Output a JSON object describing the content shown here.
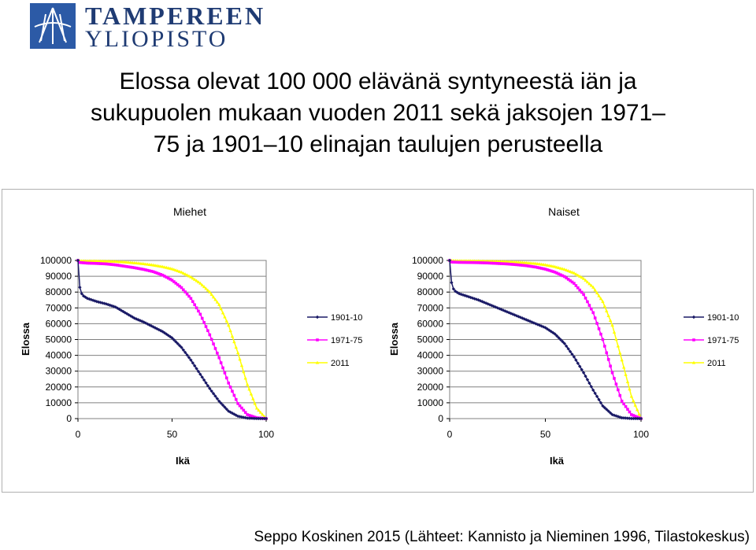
{
  "logo": {
    "line1": "TAMPEREEN",
    "line2": "YLIOPISTO"
  },
  "title_lines": [
    "Elossa olevat 100 000 elävänä syntyneestä iän ja",
    "sukupuolen mukaan vuoden 2011 sekä jaksojen 1971–",
    "75 ja 1901–10 elinajan taulujen perusteella"
  ],
  "credit": "Seppo Koskinen 2015 (Lähteet: Kannisto ja Nieminen 1996, Tilastokeskus)",
  "colors": {
    "1901-10": "#1a1a66",
    "1971-75": "#ff00ff",
    "2011": "#ffff00"
  },
  "chart_data": [
    {
      "type": "line",
      "title": "Miehet",
      "xlabel": "Ikä",
      "ylabel": "Elossa",
      "xlim": [
        0,
        100
      ],
      "ylim": [
        0,
        100000
      ],
      "xticks": [
        "0",
        "50",
        "100"
      ],
      "yticks": [
        "0",
        "10000",
        "20000",
        "30000",
        "40000",
        "50000",
        "60000",
        "70000",
        "80000",
        "90000",
        "100000"
      ],
      "grid": true,
      "legend": "right",
      "series": [
        {
          "name": "1901-10",
          "x": [
            0,
            1,
            2,
            3,
            5,
            10,
            15,
            20,
            25,
            30,
            35,
            40,
            45,
            50,
            55,
            60,
            65,
            70,
            75,
            80,
            85,
            90,
            95,
            100
          ],
          "values": [
            100000,
            83000,
            79000,
            77500,
            76000,
            74000,
            72500,
            70500,
            67000,
            63500,
            61000,
            58000,
            55000,
            51000,
            45000,
            37000,
            28000,
            19000,
            11000,
            4700,
            1500,
            300,
            40,
            0
          ]
        },
        {
          "name": "1971-75",
          "x": [
            0,
            1,
            5,
            10,
            15,
            20,
            25,
            30,
            35,
            40,
            45,
            50,
            55,
            60,
            65,
            70,
            75,
            80,
            85,
            90,
            95,
            100
          ],
          "values": [
            100000,
            98700,
            98300,
            98100,
            97800,
            97200,
            96300,
            95400,
            94300,
            92900,
            90700,
            87500,
            82800,
            76000,
            66000,
            53000,
            38500,
            22500,
            9500,
            2500,
            500,
            0
          ]
        },
        {
          "name": "2011",
          "x": [
            0,
            1,
            5,
            10,
            15,
            20,
            25,
            30,
            35,
            40,
            45,
            50,
            55,
            60,
            65,
            70,
            75,
            80,
            85,
            90,
            95,
            100
          ],
          "values": [
            100000,
            99700,
            99600,
            99600,
            99500,
            99300,
            98900,
            98400,
            97800,
            97000,
            96000,
            94600,
            92500,
            89500,
            85500,
            80000,
            72000,
            59000,
            41500,
            21500,
            6500,
            0
          ]
        }
      ]
    },
    {
      "type": "line",
      "title": "Naiset",
      "xlabel": "Ikä",
      "ylabel": "Elossa",
      "xlim": [
        0,
        100
      ],
      "ylim": [
        0,
        100000
      ],
      "xticks": [
        "0",
        "50",
        "100"
      ],
      "yticks": [
        "0",
        "10000",
        "20000",
        "30000",
        "40000",
        "50000",
        "60000",
        "70000",
        "80000",
        "90000",
        "100000"
      ],
      "grid": true,
      "legend": "right",
      "series": [
        {
          "name": "1901-10",
          "x": [
            0,
            1,
            2,
            3,
            5,
            10,
            15,
            20,
            25,
            30,
            35,
            40,
            45,
            50,
            55,
            60,
            65,
            70,
            75,
            80,
            85,
            90,
            95,
            100
          ],
          "values": [
            100000,
            86000,
            82000,
            80500,
            79000,
            77000,
            75000,
            72500,
            70000,
            67500,
            65000,
            62500,
            60000,
            57500,
            53500,
            47500,
            39000,
            29000,
            18000,
            8000,
            2500,
            500,
            60,
            0
          ]
        },
        {
          "name": "1971-75",
          "x": [
            0,
            1,
            5,
            10,
            15,
            20,
            25,
            30,
            35,
            40,
            45,
            50,
            55,
            60,
            65,
            70,
            75,
            80,
            85,
            90,
            95,
            100
          ],
          "values": [
            100000,
            99000,
            98800,
            98700,
            98600,
            98400,
            98100,
            97800,
            97300,
            96700,
            95800,
            94500,
            92600,
            89800,
            85500,
            78500,
            67000,
            50000,
            29000,
            11000,
            2500,
            0
          ]
        },
        {
          "name": "2011",
          "x": [
            0,
            1,
            5,
            10,
            15,
            20,
            25,
            30,
            35,
            40,
            45,
            50,
            55,
            60,
            65,
            70,
            75,
            80,
            85,
            90,
            95,
            100
          ],
          "values": [
            100000,
            99800,
            99700,
            99700,
            99600,
            99500,
            99400,
            99200,
            98900,
            98500,
            98000,
            97200,
            96000,
            94300,
            92000,
            88500,
            83000,
            74000,
            59000,
            37000,
            14000,
            0
          ]
        }
      ]
    }
  ]
}
